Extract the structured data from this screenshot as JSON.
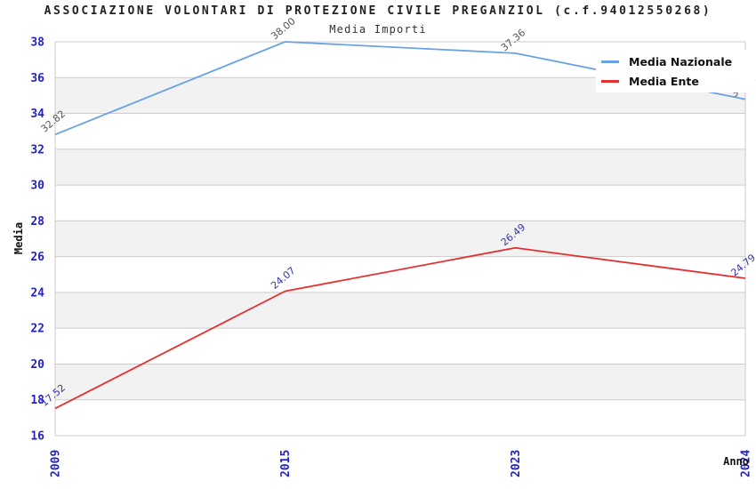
{
  "title": "ASSOCIAZIONE VOLONTARI DI PROTEZIONE CIVILE PREGANZIOL (c.f.94012550268)",
  "subtitle": "Media Importi",
  "chart_data": {
    "type": "line",
    "categories": [
      "2009",
      "2015",
      "2023",
      "2024"
    ],
    "series": [
      {
        "name": "Media Nazionale",
        "values": [
          32.82,
          38.0,
          37.36,
          34.79
        ],
        "color": "#69a3e4",
        "label_color": "#555555"
      },
      {
        "name": "Media Ente",
        "values": [
          17.52,
          24.07,
          26.49,
          24.79
        ],
        "color": "#e62e2e",
        "label_color": "#3333aa"
      }
    ],
    "xlabel": "Anno",
    "ylabel": "Media",
    "ylim": [
      16,
      38
    ],
    "ytick_step": 2,
    "yticks": [
      16,
      18,
      20,
      22,
      24,
      26,
      28,
      30,
      32,
      34,
      36,
      38
    ],
    "grid": true,
    "legend_position": "top-right",
    "colors": {
      "tick_label": "#2222cc",
      "band": "#f2f2f2",
      "grid": "#cccccc",
      "axis_title": "#111111",
      "title": "#222222"
    }
  }
}
